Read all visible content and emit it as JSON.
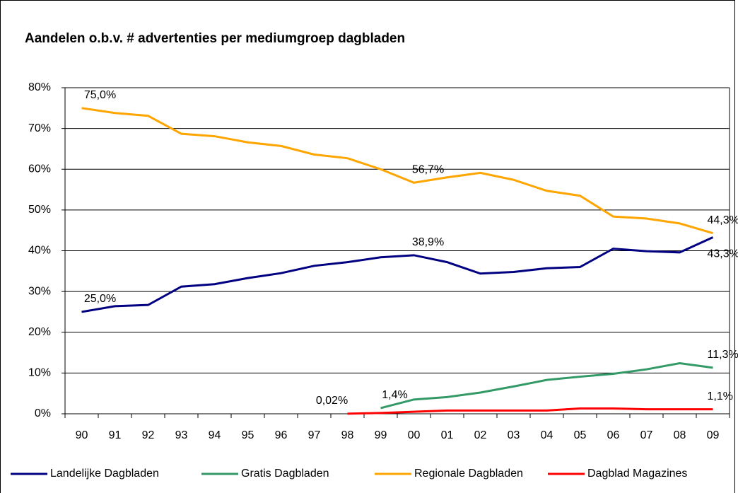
{
  "chart_data": {
    "type": "line",
    "title": "Aandelen o.b.v. # advertenties per mediumgroep dagbladen",
    "categories": [
      "90",
      "91",
      "92",
      "93",
      "94",
      "95",
      "96",
      "97",
      "98",
      "99",
      "00",
      "01",
      "02",
      "03",
      "04",
      "05",
      "06",
      "07",
      "08",
      "09"
    ],
    "series": [
      {
        "name": "Landelijke Dagbladen",
        "color": "#000080",
        "values": [
          25.0,
          26.4,
          26.7,
          31.2,
          31.8,
          33.3,
          34.5,
          36.3,
          37.2,
          38.4,
          38.9,
          37.2,
          34.4,
          34.8,
          35.7,
          36.0,
          40.5,
          39.9,
          39.6,
          43.3
        ],
        "value_labels": [
          "25,0%",
          null,
          null,
          null,
          null,
          null,
          null,
          null,
          null,
          null,
          "38,9%",
          null,
          null,
          null,
          null,
          null,
          null,
          null,
          null,
          "43,3%"
        ]
      },
      {
        "name": "Gratis Dagbladen",
        "color": "#339966",
        "values": [
          null,
          null,
          null,
          null,
          null,
          null,
          null,
          null,
          null,
          1.4,
          3.5,
          4.1,
          5.2,
          6.7,
          8.3,
          9.1,
          9.8,
          10.9,
          12.4,
          11.3
        ],
        "value_labels": [
          null,
          null,
          null,
          null,
          null,
          null,
          null,
          null,
          null,
          "1,4%",
          null,
          null,
          null,
          null,
          null,
          null,
          null,
          null,
          null,
          "11,3%"
        ]
      },
      {
        "name": "Regionale Dagbladen",
        "color": "#ffa500",
        "values": [
          75.0,
          73.8,
          73.1,
          68.7,
          68.1,
          66.6,
          65.7,
          63.6,
          62.7,
          60.0,
          56.7,
          58.0,
          59.1,
          57.4,
          54.7,
          53.5,
          48.4,
          47.9,
          46.7,
          44.3
        ],
        "value_labels": [
          "75,0%",
          null,
          null,
          null,
          null,
          null,
          null,
          null,
          null,
          null,
          "56,7%",
          null,
          null,
          null,
          null,
          null,
          null,
          null,
          null,
          "44,3%"
        ]
      },
      {
        "name": "Dagblad Magazines",
        "color": "#ff0000",
        "values": [
          null,
          null,
          null,
          null,
          null,
          null,
          null,
          null,
          0.02,
          0.2,
          0.5,
          0.8,
          0.8,
          0.8,
          0.8,
          1.3,
          1.3,
          1.1,
          1.1,
          1.1
        ],
        "value_labels": [
          null,
          null,
          null,
          null,
          null,
          null,
          null,
          null,
          "0,02%",
          null,
          null,
          null,
          null,
          null,
          null,
          null,
          null,
          null,
          null,
          "1,1%"
        ]
      }
    ],
    "ylim": [
      0,
      80
    ],
    "yticks": [
      {
        "value": 0,
        "label": "0%"
      },
      {
        "value": 10,
        "label": "10%"
      },
      {
        "value": 20,
        "label": "20%"
      },
      {
        "value": 30,
        "label": "30%"
      },
      {
        "value": 40,
        "label": "40%"
      },
      {
        "value": 50,
        "label": "50%"
      },
      {
        "value": 60,
        "label": "60%"
      },
      {
        "value": 70,
        "label": "70%"
      },
      {
        "value": 80,
        "label": "80%"
      }
    ],
    "grid": true,
    "legend": "bottom"
  }
}
